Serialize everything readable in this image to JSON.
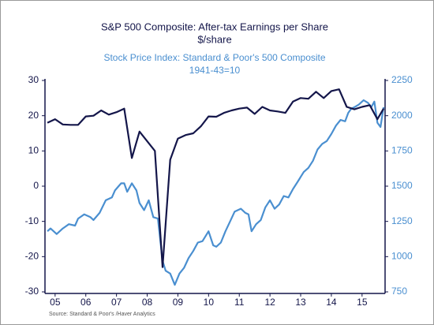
{
  "chart_data": {
    "type": "line",
    "title": "S&P 500 Composite: After-tax Earnings per Share",
    "subtitle": "$/share",
    "y2_title": "Stock Price Index: Standard & Poor's 500 Composite",
    "y2_subtitle": "1941-43=10",
    "source": "Source:  Standard & Poor's /Haver Analytics",
    "xlim": [
      2004.92,
      2016.0
    ],
    "xticks": [
      {
        "value": 2005.25,
        "label": "05"
      },
      {
        "value": 2006.25,
        "label": "06"
      },
      {
        "value": 2007.25,
        "label": "07"
      },
      {
        "value": 2008.25,
        "label": "08"
      },
      {
        "value": 2009.25,
        "label": "09"
      },
      {
        "value": 2010.25,
        "label": "10"
      },
      {
        "value": 2011.25,
        "label": "11"
      },
      {
        "value": 2012.25,
        "label": "12"
      },
      {
        "value": 2013.25,
        "label": "13"
      },
      {
        "value": 2014.25,
        "label": "14"
      },
      {
        "value": 2015.25,
        "label": "15"
      }
    ],
    "ylim": [
      -30,
      30
    ],
    "yticks": [
      30,
      20,
      10,
      0,
      -10,
      -20,
      -30
    ],
    "y2lim": [
      750,
      2250
    ],
    "y2ticks": [
      2250,
      2000,
      1750,
      1500,
      1250,
      1000,
      750
    ],
    "series": [
      {
        "name": "S&P 500 Composite: After-tax Earnings per Share",
        "color": "#14164a",
        "x": [
          2005.0,
          2005.25,
          2005.5,
          2005.75,
          2006.0,
          2006.25,
          2006.5,
          2006.75,
          2007.0,
          2007.25,
          2007.5,
          2007.75,
          2008.0,
          2008.5,
          2008.75,
          2009.0,
          2009.25,
          2009.5,
          2009.75,
          2010.0,
          2010.25,
          2010.5,
          2010.75,
          2011.0,
          2011.25,
          2011.5,
          2011.75,
          2012.0,
          2012.25,
          2012.5,
          2012.75,
          2013.0,
          2013.25,
          2013.5,
          2013.75,
          2014.0,
          2014.25,
          2014.5,
          2014.75,
          2015.0,
          2015.25,
          2015.5,
          2015.75,
          2015.95
        ],
        "values": [
          18,
          19,
          17.5,
          17.4,
          17.4,
          19.8,
          20,
          21.5,
          20.3,
          21,
          22,
          8,
          15.5,
          10,
          -23,
          7.5,
          13.5,
          14.5,
          15,
          17,
          19.8,
          19.7,
          20.8,
          21.5,
          22,
          22.3,
          20.5,
          22.5,
          21.5,
          21.2,
          20.8,
          24,
          25,
          24.8,
          26.8,
          25,
          27,
          27.5,
          22.5,
          21.8,
          22.5,
          23,
          19,
          22
        ]
      },
      {
        "name": "Stock Price Index: Standard & Poor's 500 Composite",
        "color": "#4a8fd0",
        "axis": "y2",
        "x": [
          2005.0,
          2005.1,
          2005.3,
          2005.5,
          2005.7,
          2005.9,
          2006.0,
          2006.2,
          2006.4,
          2006.5,
          2006.7,
          2006.9,
          2007.1,
          2007.2,
          2007.4,
          2007.5,
          2007.6,
          2007.75,
          2007.9,
          2008.0,
          2008.15,
          2008.3,
          2008.45,
          2008.6,
          2008.75,
          2008.85,
          2009.0,
          2009.15,
          2009.3,
          2009.45,
          2009.6,
          2009.75,
          2009.9,
          2010.05,
          2010.25,
          2010.4,
          2010.5,
          2010.65,
          2010.8,
          2010.95,
          2011.1,
          2011.3,
          2011.45,
          2011.55,
          2011.65,
          2011.8,
          2011.95,
          2012.1,
          2012.25,
          2012.4,
          2012.55,
          2012.7,
          2012.85,
          2013.0,
          2013.15,
          2013.35,
          2013.5,
          2013.65,
          2013.8,
          2013.95,
          2014.1,
          2014.25,
          2014.4,
          2014.55,
          2014.7,
          2014.8,
          2014.9,
          2015.0,
          2015.15,
          2015.3,
          2015.45,
          2015.55,
          2015.65,
          2015.75,
          2015.85,
          2015.95
        ],
        "values": [
          1180,
          1200,
          1160,
          1200,
          1230,
          1220,
          1270,
          1300,
          1280,
          1260,
          1310,
          1400,
          1420,
          1470,
          1520,
          1520,
          1460,
          1520,
          1470,
          1380,
          1330,
          1400,
          1280,
          1270,
          970,
          900,
          880,
          800,
          880,
          920,
          990,
          1040,
          1100,
          1110,
          1180,
          1080,
          1070,
          1100,
          1180,
          1250,
          1320,
          1340,
          1310,
          1300,
          1180,
          1230,
          1260,
          1350,
          1400,
          1340,
          1370,
          1430,
          1420,
          1480,
          1530,
          1600,
          1630,
          1680,
          1760,
          1800,
          1820,
          1870,
          1930,
          1970,
          1960,
          2020,
          2050,
          2060,
          2080,
          2110,
          2090,
          2060,
          2100,
          1950,
          1920,
          2060
        ]
      }
    ]
  }
}
